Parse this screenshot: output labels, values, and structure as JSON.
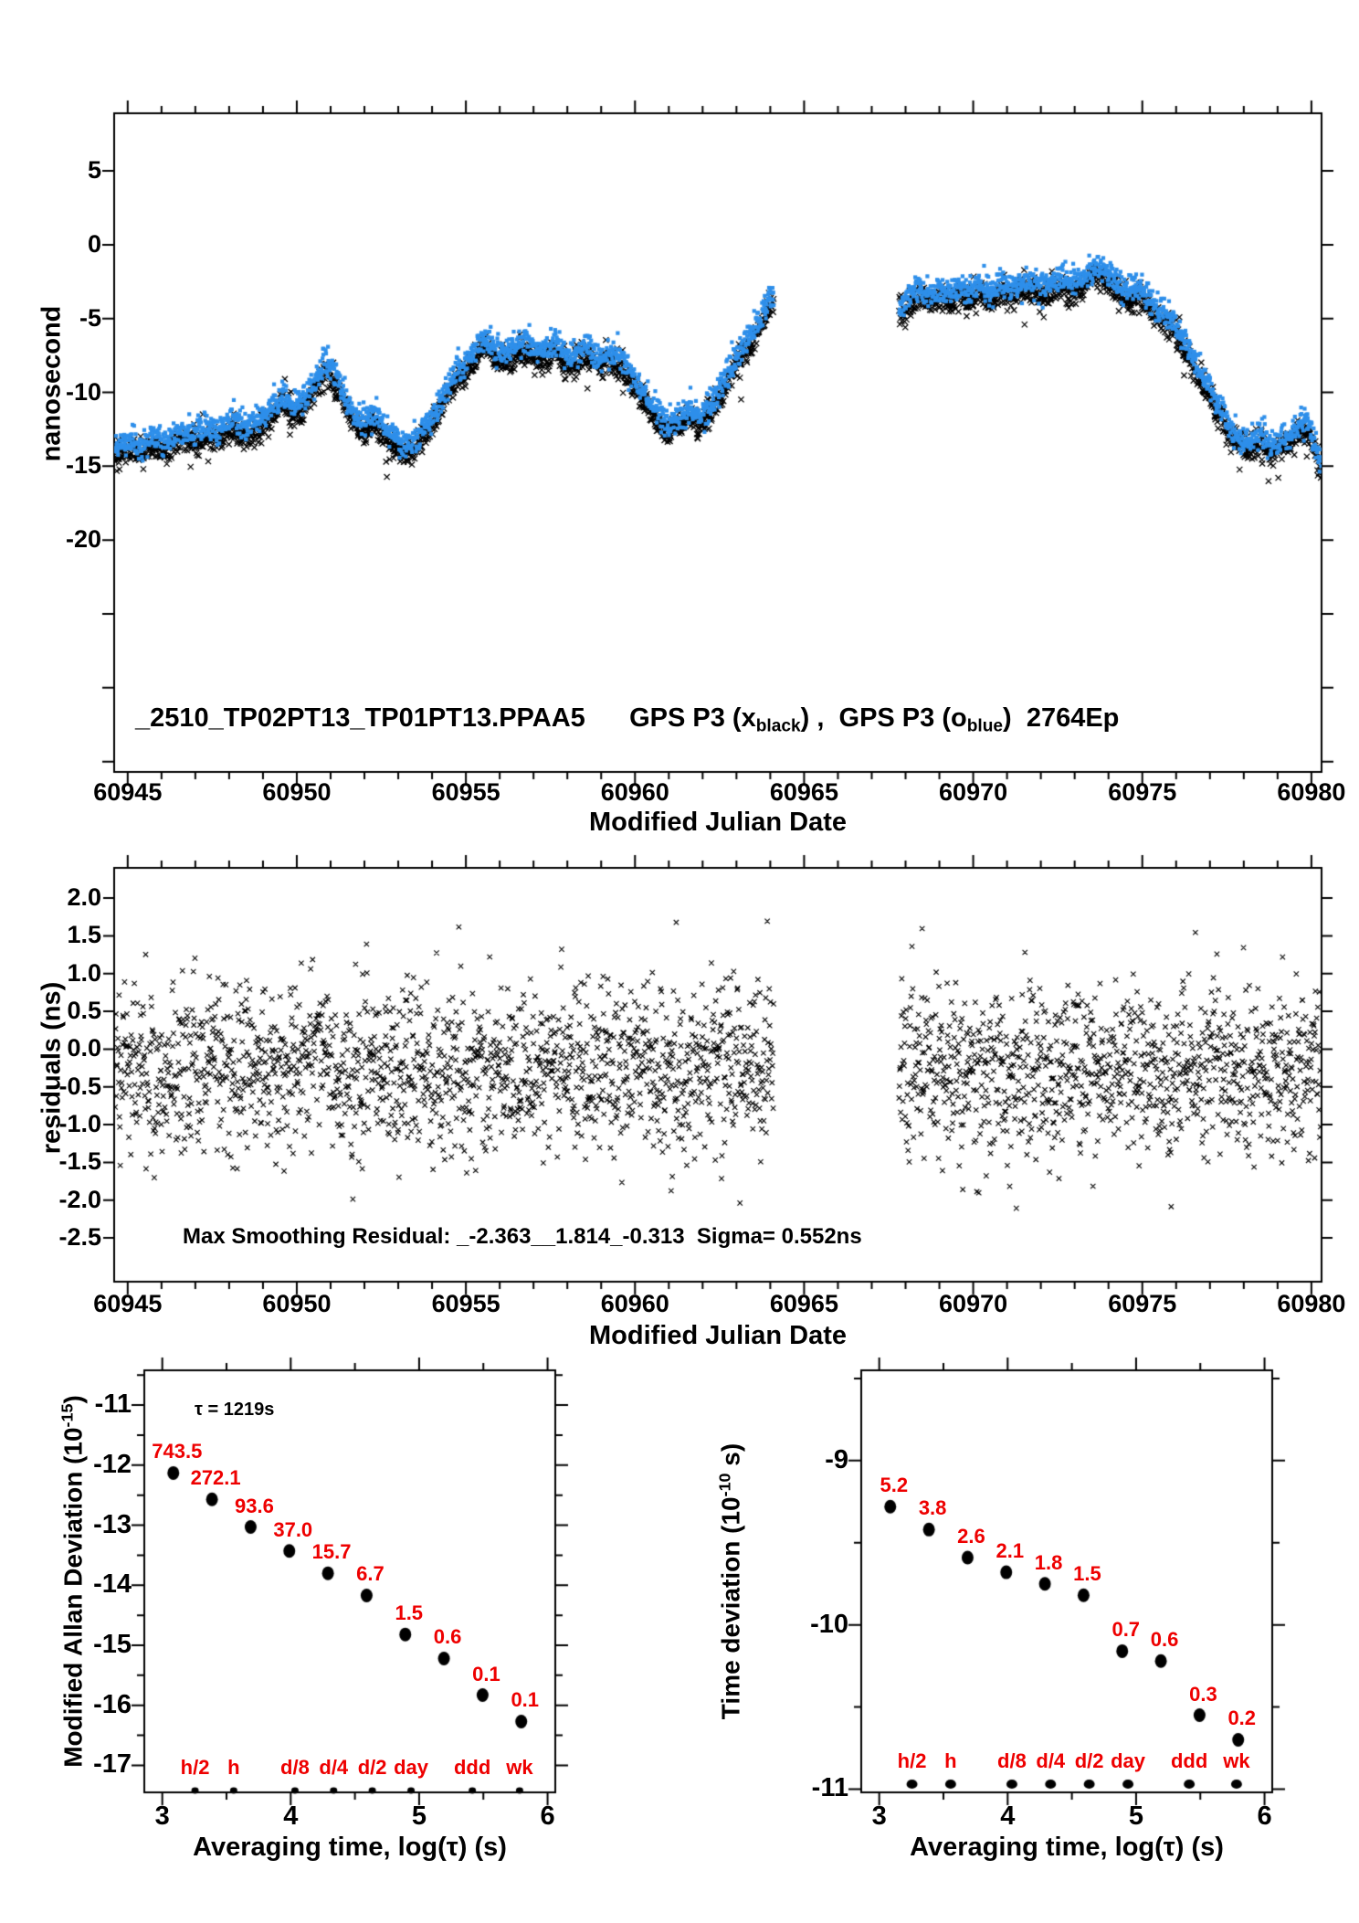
{
  "colors": {
    "black": "#000000",
    "blue": "#2e8fea",
    "red": "#ee0000",
    "background": "#ffffff"
  },
  "chart_data": [
    {
      "type": "scatter",
      "name": "phase-comparison",
      "title_parts": [
        {
          "t": "_2510_TP02PT13_TP01PT13.PPAA5      GPS P3 (x"
        },
        {
          "t": "black",
          "sub": true
        },
        {
          "t": ") ,  GPS P3 (o"
        },
        {
          "t": "blue",
          "sub": true
        },
        {
          "t": ")  2764Ep"
        }
      ],
      "xlabel": "Modified Julian Date",
      "ylabel": "nanosecond",
      "xlim": [
        60944.6,
        60980.3
      ],
      "ylim": [
        -35.7,
        8.9
      ],
      "x_major_ticks": [
        60945,
        60950,
        60955,
        60960,
        60965,
        60970,
        60975,
        60980
      ],
      "x_tick_labels": [
        "60945",
        "60950",
        "60955",
        "60960",
        "60965",
        "60970",
        "60975",
        "60980"
      ],
      "x_minor_step": 1,
      "y_major_ticks": [
        5,
        0,
        -5,
        -10,
        -15,
        -20,
        -25,
        -30,
        -35
      ],
      "y_labeled_ticks": [
        5,
        0,
        -5,
        -10,
        -15,
        -20
      ],
      "y_tick_labels": [
        "5",
        "0",
        "-5",
        "-10",
        "-15",
        "-20"
      ],
      "data_gap": [
        60964.1,
        60967.8
      ],
      "epochs": 2764,
      "step_days": 0.01156,
      "noise_sigma_black": 0.45,
      "noise_sigma_blue": 0.48,
      "blue_offset": 0.62,
      "seed": 77041,
      "series": [
        {
          "name": "GPS P3 (x black)",
          "marker": "x",
          "color": "#000000"
        },
        {
          "name": "GPS P3 (o blue)",
          "marker": "square",
          "color": "#2e8fea"
        }
      ],
      "trend_anchors": [
        [
          60944.65,
          -14.4
        ],
        [
          60945.0,
          -13.7
        ],
        [
          60945.35,
          -14.3
        ],
        [
          60945.7,
          -13.6
        ],
        [
          60946.1,
          -14.0
        ],
        [
          60946.5,
          -13.2
        ],
        [
          60946.9,
          -13.6
        ],
        [
          60947.3,
          -12.9
        ],
        [
          60947.7,
          -13.3
        ],
        [
          60948.1,
          -12.3
        ],
        [
          60948.5,
          -12.9
        ],
        [
          60948.9,
          -12.4
        ],
        [
          60949.3,
          -11.4
        ],
        [
          60949.6,
          -10.7
        ],
        [
          60949.9,
          -11.6
        ],
        [
          60950.2,
          -11.0
        ],
        [
          60950.5,
          -10.0
        ],
        [
          60950.8,
          -8.6
        ],
        [
          60951.1,
          -9.3
        ],
        [
          60951.4,
          -10.8
        ],
        [
          60951.7,
          -12.1
        ],
        [
          60952.0,
          -12.7
        ],
        [
          60952.3,
          -12.1
        ],
        [
          60952.6,
          -13.0
        ],
        [
          60952.9,
          -13.6
        ],
        [
          60953.2,
          -14.3
        ],
        [
          60953.5,
          -13.8
        ],
        [
          60953.8,
          -12.8
        ],
        [
          60954.1,
          -11.8
        ],
        [
          60954.4,
          -10.5
        ],
        [
          60954.7,
          -9.2
        ],
        [
          60955.0,
          -8.3
        ],
        [
          60955.3,
          -7.6
        ],
        [
          60955.6,
          -6.8
        ],
        [
          60955.9,
          -7.7
        ],
        [
          60956.2,
          -8.0
        ],
        [
          60956.5,
          -7.4
        ],
        [
          60956.8,
          -7.1
        ],
        [
          60957.1,
          -7.8
        ],
        [
          60957.4,
          -7.4
        ],
        [
          60957.7,
          -7.2
        ],
        [
          60958.0,
          -8.3
        ],
        [
          60958.3,
          -7.9
        ],
        [
          60958.6,
          -7.5
        ],
        [
          60958.9,
          -8.4
        ],
        [
          60959.2,
          -7.9
        ],
        [
          60959.5,
          -8.1
        ],
        [
          60959.8,
          -8.9
        ],
        [
          60960.1,
          -10.0
        ],
        [
          60960.4,
          -11.1
        ],
        [
          60960.7,
          -12.0
        ],
        [
          60961.0,
          -12.7
        ],
        [
          60961.3,
          -12.2
        ],
        [
          60961.6,
          -11.7
        ],
        [
          60961.9,
          -12.4
        ],
        [
          60962.2,
          -11.4
        ],
        [
          60962.5,
          -10.3
        ],
        [
          60962.8,
          -9.2
        ],
        [
          60963.1,
          -7.9
        ],
        [
          60963.4,
          -6.8
        ],
        [
          60963.7,
          -5.6
        ],
        [
          60963.95,
          -4.5
        ],
        [
          60964.1,
          -3.9
        ],
        [
          60967.8,
          -4.7
        ],
        [
          60968.1,
          -4.1
        ],
        [
          60968.4,
          -3.6
        ],
        [
          60968.7,
          -4.1
        ],
        [
          60969.0,
          -3.5
        ],
        [
          60969.3,
          -3.9
        ],
        [
          60969.6,
          -3.3
        ],
        [
          60969.9,
          -3.7
        ],
        [
          60970.2,
          -3.2
        ],
        [
          60970.5,
          -3.8
        ],
        [
          60970.8,
          -3.1
        ],
        [
          60971.1,
          -3.6
        ],
        [
          60971.4,
          -3.2
        ],
        [
          60971.7,
          -3.0
        ],
        [
          60972.0,
          -3.5
        ],
        [
          60972.3,
          -3.1
        ],
        [
          60972.6,
          -2.8
        ],
        [
          60972.9,
          -3.3
        ],
        [
          60973.2,
          -2.9
        ],
        [
          60973.5,
          -2.3
        ],
        [
          60973.8,
          -1.9
        ],
        [
          60974.0,
          -2.5
        ],
        [
          60974.3,
          -3.3
        ],
        [
          60974.6,
          -3.9
        ],
        [
          60974.9,
          -3.4
        ],
        [
          60975.2,
          -4.3
        ],
        [
          60975.5,
          -5.0
        ],
        [
          60975.8,
          -5.5
        ],
        [
          60976.1,
          -6.5
        ],
        [
          60976.4,
          -7.8
        ],
        [
          60976.7,
          -9.2
        ],
        [
          60977.0,
          -10.4
        ],
        [
          60977.3,
          -11.6
        ],
        [
          60977.6,
          -12.9
        ],
        [
          60977.9,
          -13.8
        ],
        [
          60978.2,
          -13.9
        ],
        [
          60978.5,
          -13.3
        ],
        [
          60978.8,
          -14.2
        ],
        [
          60979.1,
          -13.8
        ],
        [
          60979.4,
          -13.2
        ],
        [
          60979.7,
          -12.6
        ],
        [
          60979.95,
          -13.0
        ],
        [
          60980.15,
          -14.2
        ],
        [
          60980.28,
          -15.6
        ]
      ]
    },
    {
      "type": "scatter",
      "name": "smoothing-residuals",
      "xlabel": "Modified Julian Date",
      "ylabel": "residuals (ns)",
      "annotation": "Max Smoothing Residual: _-2.363__1.814_-0.313  Sigma= 0.552ns",
      "xlim": [
        60944.6,
        60980.3
      ],
      "ylim": [
        -3.08,
        2.4
      ],
      "x_major_ticks": [
        60945,
        60950,
        60955,
        60960,
        60965,
        60970,
        60975,
        60980
      ],
      "x_tick_labels": [
        "60945",
        "60950",
        "60955",
        "60960",
        "60965",
        "60970",
        "60975",
        "60980"
      ],
      "x_minor_step": 1,
      "y_major_ticks": [
        2.0,
        1.5,
        1.0,
        0.5,
        0.0,
        -0.5,
        -1.0,
        -1.5,
        -2.0,
        -2.5
      ],
      "y_tick_labels": [
        "2.0",
        "1.5",
        "1.0",
        "0.5",
        "0.0",
        "-0.5",
        "-1.0",
        "-1.5",
        "-2.0",
        "-2.5"
      ],
      "data_gap": [
        60964.1,
        60967.8
      ],
      "step_days": 0.01156,
      "residual_mean": -0.27,
      "residual_sigma": 0.552,
      "residual_clip": [
        -2.363,
        1.814
      ],
      "seed": 90210,
      "series": [
        {
          "name": "smoothing residual",
          "marker": "x",
          "color": "#000000"
        }
      ]
    },
    {
      "type": "scatter",
      "name": "modified-allan-deviation",
      "ylabel_parts": [
        {
          "t": "Modified Allan Deviation (10"
        },
        {
          "t": "-15",
          "sup": true
        },
        {
          "t": ")"
        }
      ],
      "xlabel": "Averaging time, log(τ) (s)",
      "tau_label": "τ = 1219s",
      "xlim": [
        2.86,
        6.06
      ],
      "ylim": [
        -17.45,
        -10.42
      ],
      "x_major_ticks": [
        3,
        4,
        5,
        6
      ],
      "x_tick_labels": [
        "3",
        "4",
        "5",
        "6"
      ],
      "x_minor_step": 0.5,
      "y_major_ticks": [
        -11,
        -12,
        -13,
        -14,
        -15,
        -16,
        -17
      ],
      "y_tick_labels": [
        "-11",
        "-12",
        "-13",
        "-14",
        "-15",
        "-16",
        "-17"
      ],
      "y_minor_step": 0.5,
      "points": [
        {
          "x": 3.086,
          "y": -12.13,
          "label": "743.5"
        },
        {
          "x": 3.387,
          "y": -12.57,
          "label": "272.1"
        },
        {
          "x": 3.688,
          "y": -13.03,
          "label": "93.6"
        },
        {
          "x": 3.989,
          "y": -13.43,
          "label": "37.0"
        },
        {
          "x": 4.29,
          "y": -13.8,
          "label": "15.7"
        },
        {
          "x": 4.591,
          "y": -14.17,
          "label": "6.7"
        },
        {
          "x": 4.892,
          "y": -14.82,
          "label": "1.5"
        },
        {
          "x": 5.193,
          "y": -15.22,
          "label": "0.6"
        },
        {
          "x": 5.494,
          "y": -15.83,
          "label": "0.1"
        },
        {
          "x": 5.795,
          "y": -16.27,
          "label": "0.1"
        }
      ],
      "time_markers": [
        {
          "x": 3.255,
          "label": "h/2"
        },
        {
          "x": 3.556,
          "label": "h"
        },
        {
          "x": 4.033,
          "label": "d/8"
        },
        {
          "x": 4.334,
          "label": "d/4"
        },
        {
          "x": 4.635,
          "label": "d/2"
        },
        {
          "x": 4.937,
          "label": "day"
        },
        {
          "x": 5.414,
          "label": "ddd"
        },
        {
          "x": 5.782,
          "label": "wk"
        }
      ]
    },
    {
      "type": "scatter",
      "name": "time-deviation",
      "ylabel_parts": [
        {
          "t": "Time deviation (10"
        },
        {
          "t": "-10",
          "sup": true
        },
        {
          "t": " s)"
        }
      ],
      "xlabel": "Averaging time, log(τ) (s)",
      "xlim": [
        2.86,
        6.06
      ],
      "ylim": [
        -11.02,
        -8.45
      ],
      "x_major_ticks": [
        3,
        4,
        5,
        6
      ],
      "x_tick_labels": [
        "3",
        "4",
        "5",
        "6"
      ],
      "x_minor_step": 0.5,
      "y_major_ticks": [
        -9,
        -10,
        -11
      ],
      "y_tick_labels": [
        "-9",
        "-10",
        "-11"
      ],
      "y_minor_step": 0.5,
      "points": [
        {
          "x": 3.086,
          "y": -9.28,
          "label": "5.2"
        },
        {
          "x": 3.387,
          "y": -9.42,
          "label": "3.8"
        },
        {
          "x": 3.688,
          "y": -9.59,
          "label": "2.6"
        },
        {
          "x": 3.989,
          "y": -9.68,
          "label": "2.1"
        },
        {
          "x": 4.29,
          "y": -9.75,
          "label": "1.8"
        },
        {
          "x": 4.591,
          "y": -9.82,
          "label": "1.5"
        },
        {
          "x": 4.892,
          "y": -10.16,
          "label": "0.7"
        },
        {
          "x": 5.193,
          "y": -10.22,
          "label": "0.6"
        },
        {
          "x": 5.494,
          "y": -10.55,
          "label": "0.3"
        },
        {
          "x": 5.795,
          "y": -10.7,
          "label": "0.2"
        }
      ],
      "time_markers": [
        {
          "x": 3.255,
          "label": "h/2"
        },
        {
          "x": 3.556,
          "label": "h"
        },
        {
          "x": 4.033,
          "label": "d/8"
        },
        {
          "x": 4.334,
          "label": "d/4"
        },
        {
          "x": 4.635,
          "label": "d/2"
        },
        {
          "x": 4.937,
          "label": "day"
        },
        {
          "x": 5.414,
          "label": "ddd"
        },
        {
          "x": 5.782,
          "label": "wk"
        }
      ]
    }
  ]
}
